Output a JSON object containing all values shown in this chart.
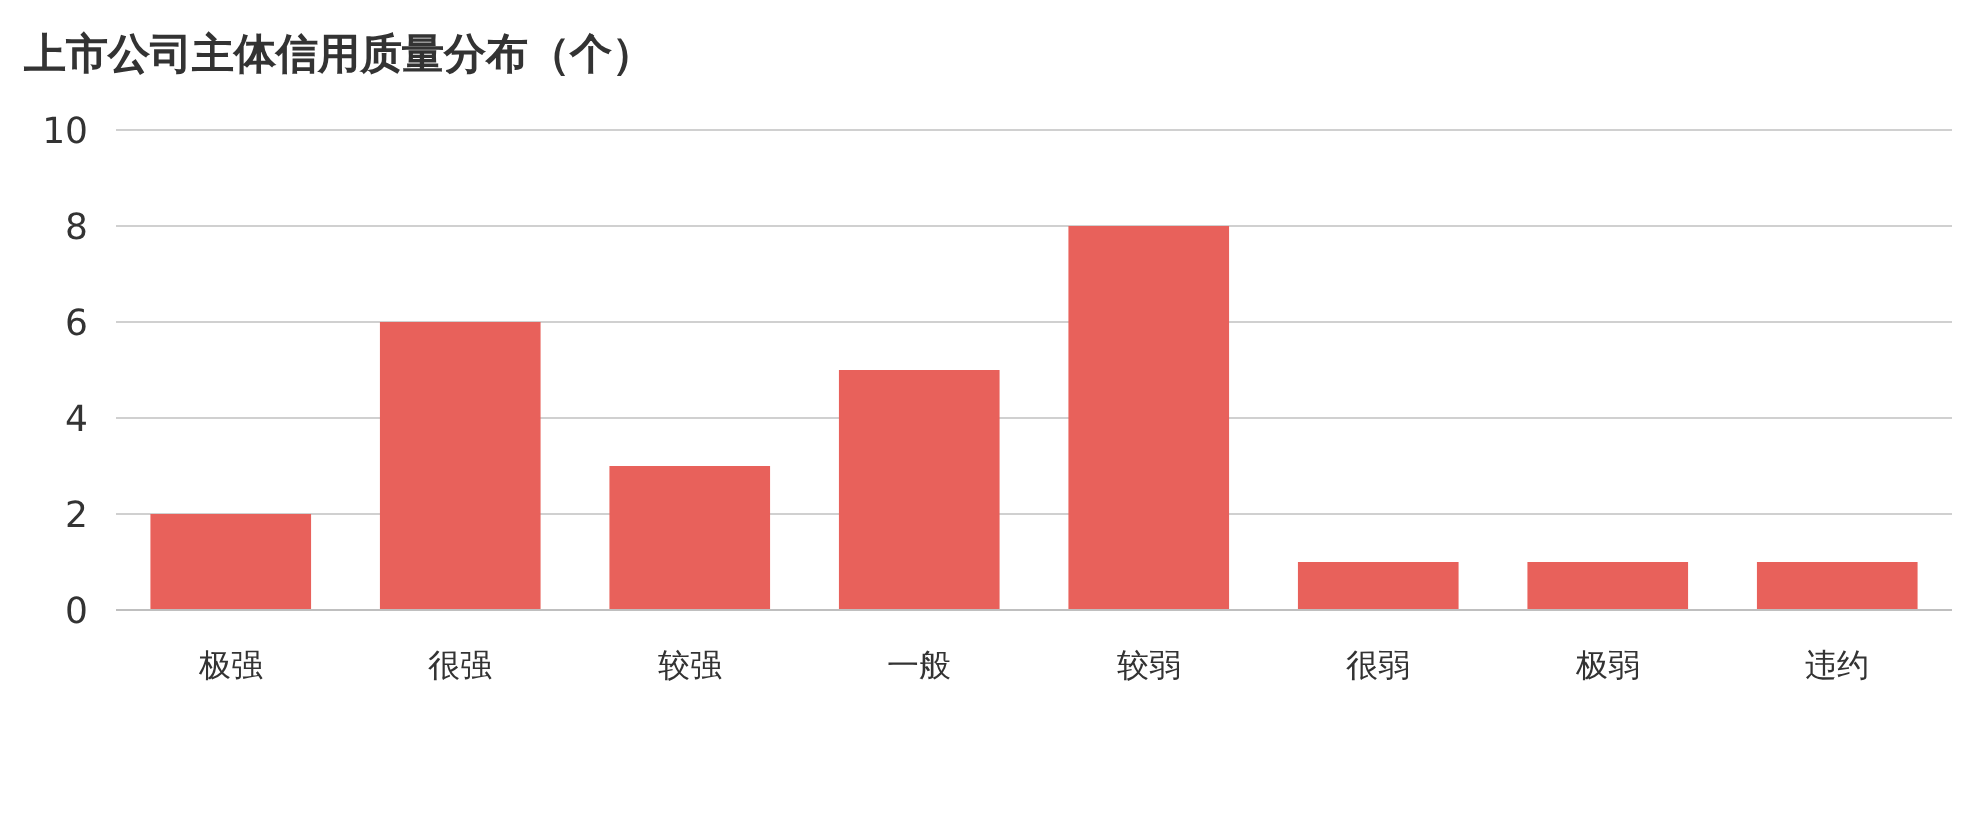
{
  "chart_data": {
    "type": "bar",
    "title": "上市公司主体信用质量分布（个）",
    "categories": [
      "极强",
      "很强",
      "较强",
      "一般",
      "较弱",
      "很弱",
      "极弱",
      "违约"
    ],
    "values": [
      2,
      6,
      3,
      5,
      8,
      1,
      1,
      1
    ],
    "color": "#e8615b",
    "ylim": [
      0,
      10
    ],
    "yticks": [
      0,
      2,
      4,
      6,
      8,
      10
    ],
    "grid": "y"
  }
}
